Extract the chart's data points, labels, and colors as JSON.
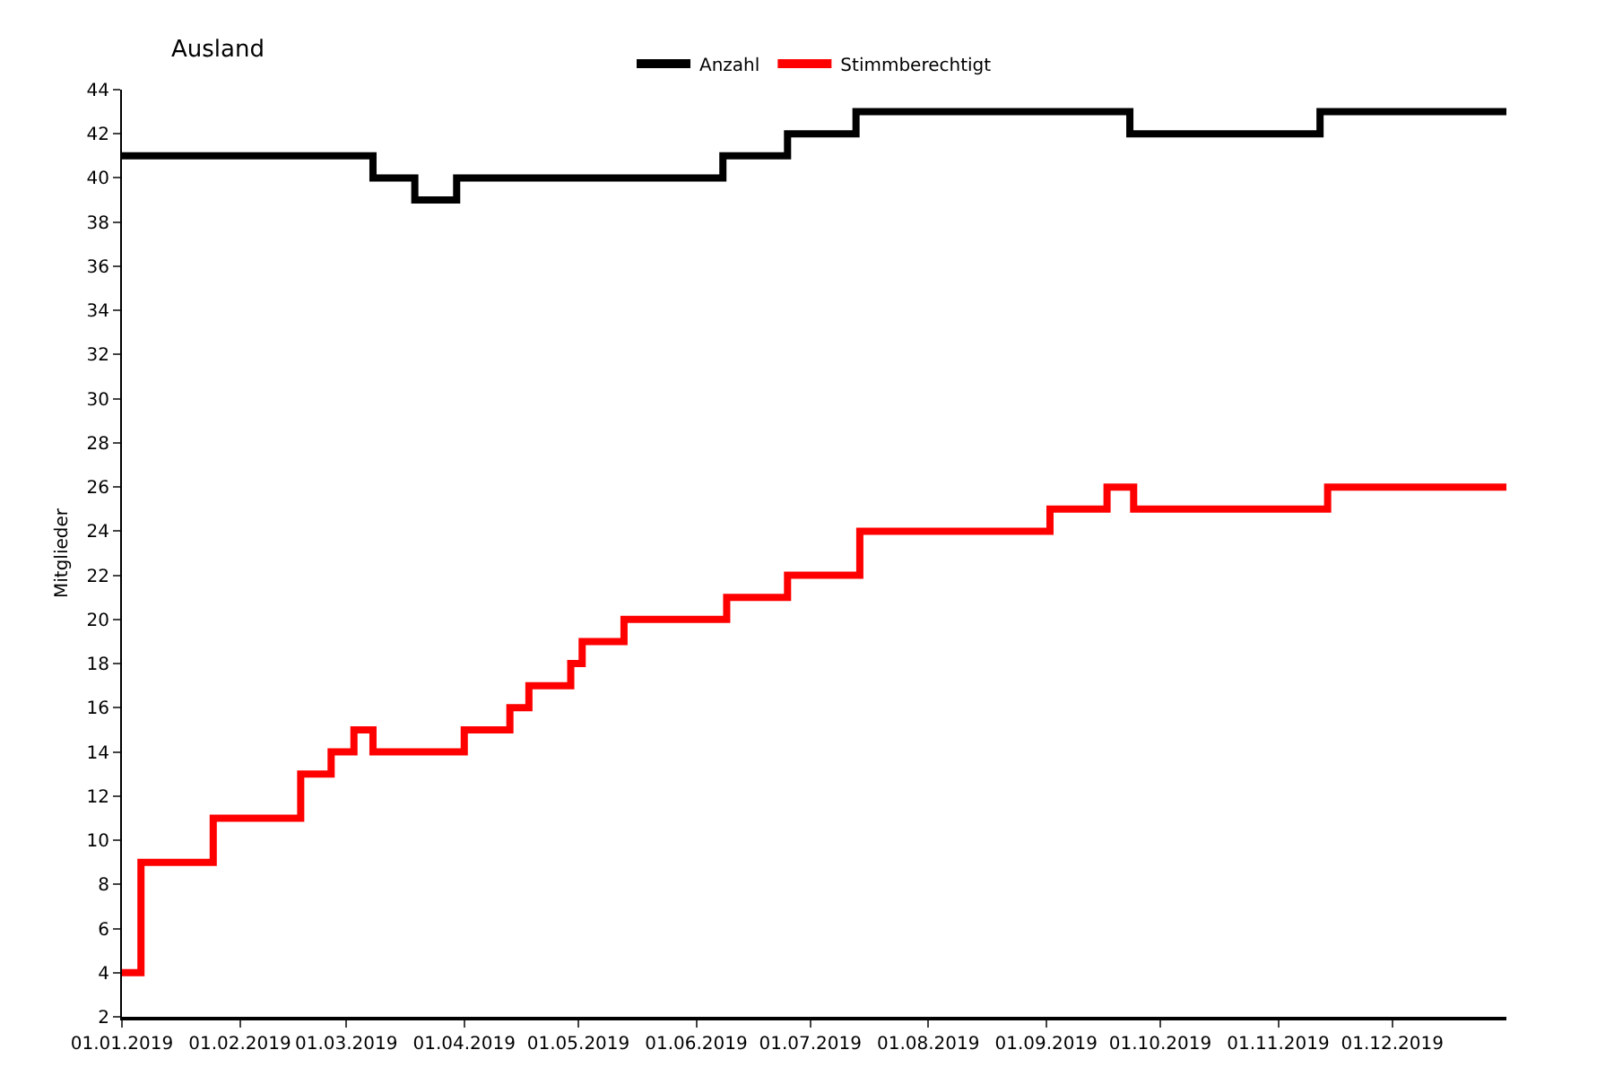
{
  "chart_data": {
    "type": "step",
    "title": "Ausland",
    "ylabel": "Mitglieder",
    "xlim": [
      "2019-01-01",
      "2019-12-31"
    ],
    "xticks": [
      {
        "value": "2019-01-01",
        "label": "01.01.2019"
      },
      {
        "value": "2019-02-01",
        "label": "01.02.2019"
      },
      {
        "value": "2019-03-01",
        "label": "01.03.2019"
      },
      {
        "value": "2019-04-01",
        "label": "01.04.2019"
      },
      {
        "value": "2019-05-01",
        "label": "01.05.2019"
      },
      {
        "value": "2019-06-01",
        "label": "01.06.2019"
      },
      {
        "value": "2019-07-01",
        "label": "01.07.2019"
      },
      {
        "value": "2019-08-01",
        "label": "01.08.2019"
      },
      {
        "value": "2019-09-01",
        "label": "01.09.2019"
      },
      {
        "value": "2019-10-01",
        "label": "01.10.2019"
      },
      {
        "value": "2019-11-01",
        "label": "01.11.2019"
      },
      {
        "value": "2019-12-01",
        "label": "01.12.2019"
      }
    ],
    "ylim": [
      2,
      44
    ],
    "yticks": [
      2,
      4,
      6,
      8,
      10,
      12,
      14,
      16,
      18,
      20,
      22,
      24,
      26,
      28,
      30,
      32,
      34,
      36,
      38,
      40,
      42,
      44
    ],
    "legend": "top",
    "marker": "none",
    "line_style": "solid",
    "series": [
      {
        "name": "Anzahl",
        "color": "#000000",
        "x": [
          "2019-01-01",
          "2019-03-08",
          "2019-03-19",
          "2019-03-30",
          "2019-06-08",
          "2019-06-25",
          "2019-07-13",
          "2019-09-23",
          "2019-11-12",
          "2019-12-31"
        ],
        "values": [
          41,
          40,
          39,
          40,
          41,
          42,
          43,
          42,
          43,
          43
        ]
      },
      {
        "name": "Stimmberechtigt",
        "color": "#ff0000",
        "x": [
          "2019-01-01",
          "2019-01-06",
          "2019-01-25",
          "2019-02-17",
          "2019-02-25",
          "2019-03-03",
          "2019-03-08",
          "2019-04-01",
          "2019-04-13",
          "2019-04-18",
          "2019-04-29",
          "2019-05-02",
          "2019-05-13",
          "2019-06-09",
          "2019-06-25",
          "2019-07-14",
          "2019-09-02",
          "2019-09-17",
          "2019-09-24",
          "2019-11-14",
          "2019-12-31"
        ],
        "values": [
          4,
          9,
          11,
          13,
          14,
          15,
          14,
          15,
          16,
          17,
          18,
          19,
          20,
          21,
          22,
          24,
          25,
          26,
          25,
          26,
          26
        ]
      }
    ]
  }
}
